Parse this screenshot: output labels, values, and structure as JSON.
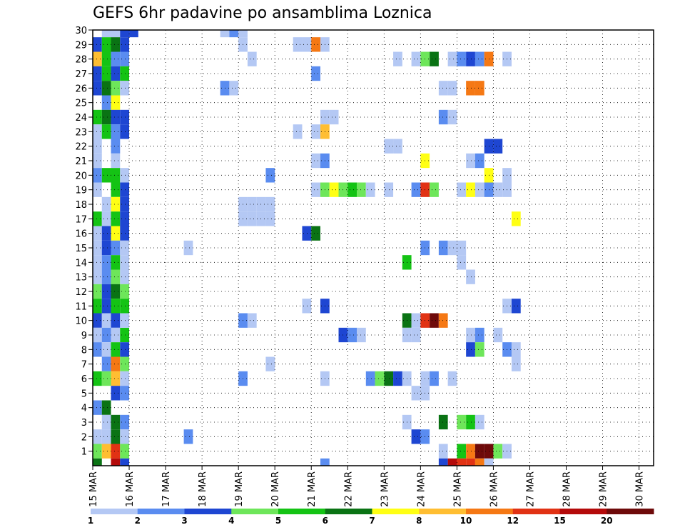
{
  "chart_data": {
    "type": "heatmap",
    "title": "GEFS 6hr padavine po ansamblima Loznica",
    "y_categories": [
      "1",
      "2",
      "3",
      "4",
      "5",
      "6",
      "7",
      "8",
      "9",
      "10",
      "11",
      "12",
      "13",
      "14",
      "15",
      "16",
      "17",
      "18",
      "19",
      "20",
      "21",
      "22",
      "23",
      "24",
      "25",
      "26",
      "27",
      "28",
      "29",
      "30"
    ],
    "x_ticks": [
      "15 MAR",
      "16 MAR",
      "17 MAR",
      "18 MAR",
      "19 MAR",
      "20 MAR",
      "21 MAR",
      "22 MAR",
      "23 MAR",
      "24 MAR",
      "25 MAR",
      "26 MAR",
      "27 MAR",
      "28 MAR",
      "29 MAR",
      "30 MAR"
    ],
    "x_range": [
      "15 MAR 00Z",
      "30 MAR 12Z"
    ],
    "step_hours": 6,
    "grid": true,
    "colorbar": {
      "boundaries": [
        "1",
        "2",
        "3",
        "4",
        "5",
        "6",
        "7",
        "8",
        "10",
        "12",
        "15",
        "20"
      ],
      "colors": [
        "#b4c8f4",
        "#5a8cf0",
        "#1e46d2",
        "#6ee65a",
        "#14c314",
        "#0a7314",
        "#ffff14",
        "#ffbe32",
        "#f57814",
        "#e13214",
        "#b40a0a",
        "#6e0a0a"
      ]
    },
    "cells_format": "[column_index (6h step from 15 MAR 00Z), member (row), color_index]",
    "cells": [
      [
        1,
        30,
        0
      ],
      [
        2,
        30,
        0
      ],
      [
        3,
        30,
        2
      ],
      [
        4,
        30,
        2
      ],
      [
        0,
        29,
        2
      ],
      [
        1,
        29,
        4
      ],
      [
        2,
        29,
        5
      ],
      [
        3,
        29,
        2
      ],
      [
        0,
        28,
        7
      ],
      [
        1,
        28,
        4
      ],
      [
        2,
        28,
        1
      ],
      [
        3,
        28,
        1
      ],
      [
        0,
        27,
        2
      ],
      [
        1,
        27,
        4
      ],
      [
        2,
        27,
        2
      ],
      [
        3,
        27,
        4
      ],
      [
        0,
        26,
        2
      ],
      [
        1,
        26,
        5
      ],
      [
        2,
        26,
        3
      ],
      [
        3,
        26,
        0
      ],
      [
        1,
        25,
        1
      ],
      [
        2,
        25,
        6
      ],
      [
        0,
        24,
        4
      ],
      [
        1,
        24,
        5
      ],
      [
        2,
        24,
        2
      ],
      [
        3,
        24,
        2
      ],
      [
        0,
        23,
        0
      ],
      [
        1,
        23,
        4
      ],
      [
        2,
        23,
        1
      ],
      [
        3,
        23,
        2
      ],
      [
        0,
        22,
        0
      ],
      [
        2,
        22,
        1
      ],
      [
        0,
        21,
        0
      ],
      [
        2,
        21,
        0
      ],
      [
        0,
        20,
        1
      ],
      [
        1,
        20,
        4
      ],
      [
        2,
        20,
        4
      ],
      [
        3,
        20,
        0
      ],
      [
        0,
        19,
        0
      ],
      [
        2,
        19,
        4
      ],
      [
        3,
        19,
        2
      ],
      [
        1,
        18,
        0
      ],
      [
        2,
        18,
        6
      ],
      [
        3,
        18,
        2
      ],
      [
        0,
        17,
        4
      ],
      [
        1,
        17,
        0
      ],
      [
        2,
        17,
        4
      ],
      [
        3,
        17,
        2
      ],
      [
        0,
        16,
        0
      ],
      [
        1,
        16,
        2
      ],
      [
        2,
        16,
        6
      ],
      [
        3,
        16,
        2
      ],
      [
        0,
        15,
        0
      ],
      [
        1,
        15,
        2
      ],
      [
        2,
        15,
        1
      ],
      [
        3,
        15,
        0
      ],
      [
        0,
        14,
        0
      ],
      [
        1,
        14,
        1
      ],
      [
        2,
        14,
        4
      ],
      [
        3,
        14,
        0
      ],
      [
        0,
        13,
        0
      ],
      [
        1,
        13,
        1
      ],
      [
        2,
        13,
        3
      ],
      [
        3,
        13,
        0
      ],
      [
        0,
        12,
        3
      ],
      [
        1,
        12,
        2
      ],
      [
        2,
        12,
        5
      ],
      [
        3,
        12,
        3
      ],
      [
        0,
        11,
        4
      ],
      [
        1,
        11,
        2
      ],
      [
        2,
        11,
        4
      ],
      [
        3,
        11,
        4
      ],
      [
        0,
        10,
        2
      ],
      [
        1,
        10,
        0
      ],
      [
        2,
        10,
        2
      ],
      [
        0,
        9,
        0
      ],
      [
        1,
        9,
        1
      ],
      [
        2,
        9,
        0
      ],
      [
        3,
        9,
        4
      ],
      [
        0,
        8,
        1
      ],
      [
        1,
        8,
        0
      ],
      [
        2,
        8,
        4
      ],
      [
        3,
        8,
        2
      ],
      [
        1,
        7,
        1
      ],
      [
        2,
        7,
        8
      ],
      [
        3,
        7,
        3
      ],
      [
        0,
        6,
        4
      ],
      [
        1,
        6,
        3
      ],
      [
        2,
        6,
        7
      ],
      [
        3,
        6,
        0
      ],
      [
        2,
        5,
        2
      ],
      [
        3,
        5,
        1
      ],
      [
        0,
        4,
        1
      ],
      [
        1,
        4,
        5
      ],
      [
        1,
        3,
        0
      ],
      [
        2,
        3,
        5
      ],
      [
        3,
        3,
        1
      ],
      [
        0,
        2,
        0
      ],
      [
        1,
        2,
        0
      ],
      [
        2,
        2,
        5
      ],
      [
        3,
        2,
        0
      ],
      [
        0,
        1,
        3
      ],
      [
        1,
        1,
        7
      ],
      [
        2,
        1,
        9
      ],
      [
        3,
        1,
        3
      ],
      [
        2,
        0,
        10
      ],
      [
        0,
        0,
        5
      ],
      [
        3,
        0,
        2
      ],
      [
        14,
        30,
        0
      ],
      [
        15,
        30,
        1
      ],
      [
        16,
        30,
        0
      ],
      [
        16,
        29,
        0
      ],
      [
        22,
        29,
        0
      ],
      [
        23,
        29,
        0
      ],
      [
        24,
        29,
        8
      ],
      [
        25,
        29,
        0
      ],
      [
        17,
        28,
        0
      ],
      [
        33,
        28,
        0
      ],
      [
        35,
        28,
        0
      ],
      [
        36,
        28,
        3
      ],
      [
        37,
        28,
        5
      ],
      [
        39,
        28,
        0
      ],
      [
        40,
        28,
        1
      ],
      [
        41,
        28,
        2
      ],
      [
        42,
        28,
        1
      ],
      [
        43,
        28,
        8
      ],
      [
        45,
        28,
        0
      ],
      [
        24,
        27,
        1
      ],
      [
        14,
        26,
        1
      ],
      [
        15,
        26,
        0
      ],
      [
        38,
        26,
        0
      ],
      [
        39,
        26,
        0
      ],
      [
        41,
        26,
        8
      ],
      [
        42,
        26,
        8
      ],
      [
        25,
        24,
        0
      ],
      [
        26,
        24,
        0
      ],
      [
        38,
        24,
        1
      ],
      [
        39,
        24,
        0
      ],
      [
        22,
        23,
        0
      ],
      [
        24,
        23,
        0
      ],
      [
        25,
        23,
        7
      ],
      [
        32,
        22,
        0
      ],
      [
        33,
        22,
        0
      ],
      [
        43,
        22,
        2
      ],
      [
        44,
        22,
        2
      ],
      [
        24,
        21,
        0
      ],
      [
        25,
        21,
        1
      ],
      [
        36,
        21,
        6
      ],
      [
        41,
        21,
        0
      ],
      [
        42,
        21,
        1
      ],
      [
        19,
        20,
        1
      ],
      [
        43,
        20,
        6
      ],
      [
        45,
        20,
        0
      ],
      [
        24,
        19,
        0
      ],
      [
        25,
        19,
        3
      ],
      [
        26,
        19,
        6
      ],
      [
        27,
        19,
        3
      ],
      [
        28,
        19,
        4
      ],
      [
        29,
        19,
        3
      ],
      [
        30,
        19,
        0
      ],
      [
        32,
        19,
        0
      ],
      [
        35,
        19,
        1
      ],
      [
        36,
        19,
        9
      ],
      [
        37,
        19,
        3
      ],
      [
        40,
        19,
        0
      ],
      [
        41,
        19,
        6
      ],
      [
        42,
        19,
        0
      ],
      [
        43,
        19,
        1
      ],
      [
        44,
        19,
        0
      ],
      [
        45,
        19,
        0
      ],
      [
        16,
        18,
        0
      ],
      [
        17,
        18,
        0
      ],
      [
        18,
        18,
        0
      ],
      [
        19,
        18,
        0
      ],
      [
        16,
        17,
        0
      ],
      [
        17,
        17,
        0
      ],
      [
        18,
        17,
        0
      ],
      [
        19,
        17,
        0
      ],
      [
        46,
        17,
        6
      ],
      [
        23,
        16,
        2
      ],
      [
        24,
        16,
        5
      ],
      [
        10,
        15,
        0
      ],
      [
        36,
        15,
        1
      ],
      [
        38,
        15,
        1
      ],
      [
        39,
        15,
        0
      ],
      [
        40,
        15,
        0
      ],
      [
        34,
        14,
        4
      ],
      [
        40,
        14,
        0
      ],
      [
        41,
        13,
        0
      ],
      [
        23,
        11,
        0
      ],
      [
        25,
        11,
        2
      ],
      [
        45,
        11,
        0
      ],
      [
        46,
        11,
        2
      ],
      [
        3,
        10,
        0
      ],
      [
        16,
        10,
        1
      ],
      [
        17,
        10,
        0
      ],
      [
        34,
        10,
        5
      ],
      [
        35,
        10,
        0
      ],
      [
        36,
        10,
        9
      ],
      [
        37,
        10,
        11
      ],
      [
        38,
        10,
        8
      ],
      [
        27,
        9,
        2
      ],
      [
        28,
        9,
        1
      ],
      [
        29,
        9,
        0
      ],
      [
        34,
        9,
        0
      ],
      [
        35,
        9,
        0
      ],
      [
        41,
        9,
        0
      ],
      [
        42,
        9,
        1
      ],
      [
        44,
        9,
        0
      ],
      [
        41,
        8,
        2
      ],
      [
        42,
        8,
        3
      ],
      [
        45,
        8,
        1
      ],
      [
        46,
        8,
        0
      ],
      [
        19,
        7,
        0
      ],
      [
        46,
        7,
        0
      ],
      [
        16,
        6,
        1
      ],
      [
        25,
        6,
        0
      ],
      [
        30,
        6,
        1
      ],
      [
        31,
        6,
        3
      ],
      [
        32,
        6,
        5
      ],
      [
        33,
        6,
        2
      ],
      [
        34,
        6,
        0
      ],
      [
        36,
        6,
        0
      ],
      [
        37,
        6,
        1
      ],
      [
        39,
        6,
        0
      ],
      [
        35,
        5,
        0
      ],
      [
        36,
        5,
        0
      ],
      [
        34,
        3,
        0
      ],
      [
        38,
        3,
        5
      ],
      [
        40,
        3,
        3
      ],
      [
        41,
        3,
        4
      ],
      [
        42,
        3,
        0
      ],
      [
        10,
        2,
        1
      ],
      [
        35,
        2,
        2
      ],
      [
        36,
        2,
        1
      ],
      [
        38,
        1,
        0
      ],
      [
        40,
        1,
        4
      ],
      [
        41,
        1,
        8
      ],
      [
        42,
        1,
        11
      ],
      [
        43,
        1,
        11
      ],
      [
        44,
        1,
        3
      ],
      [
        45,
        1,
        0
      ],
      [
        25,
        0,
        1
      ],
      [
        38,
        0,
        2
      ],
      [
        39,
        0,
        10
      ],
      [
        40,
        0,
        9
      ],
      [
        41,
        0,
        9
      ],
      [
        42,
        0,
        8
      ],
      [
        43,
        0,
        0
      ]
    ]
  }
}
